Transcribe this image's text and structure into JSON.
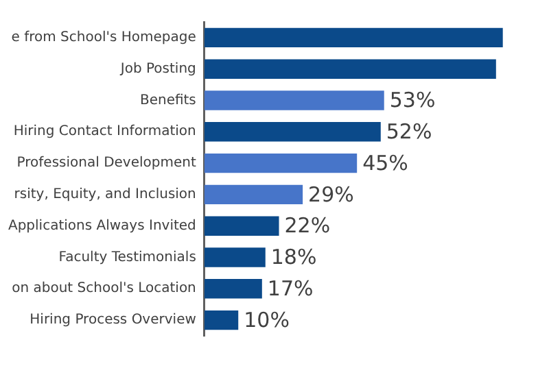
{
  "chart_data": {
    "type": "bar",
    "orientation": "horizontal",
    "categories": [
      "e from School's Homepage",
      "Job Posting",
      "Benefits",
      "Hiring Contact Information",
      "Professional Development",
      "rsity, Equity, and Inclusion",
      "Applications Always Invited",
      "Faculty Testimonials",
      "on about School's Location",
      "Hiring Process Overview"
    ],
    "values": [
      88,
      86,
      53,
      52,
      45,
      29,
      22,
      18,
      17,
      10
    ],
    "value_labels": [
      null,
      null,
      "53%",
      "52%",
      "45%",
      "29%",
      "22%",
      "18%",
      "17%",
      "10%"
    ],
    "colors": [
      "#0b4a8a",
      "#0b4a8a",
      "#4775c9",
      "#0b4a8a",
      "#4775c9",
      "#4775c9",
      "#0b4a8a",
      "#0b4a8a",
      "#0b4a8a",
      "#0b4a8a"
    ],
    "tick_labels": "y"
  }
}
